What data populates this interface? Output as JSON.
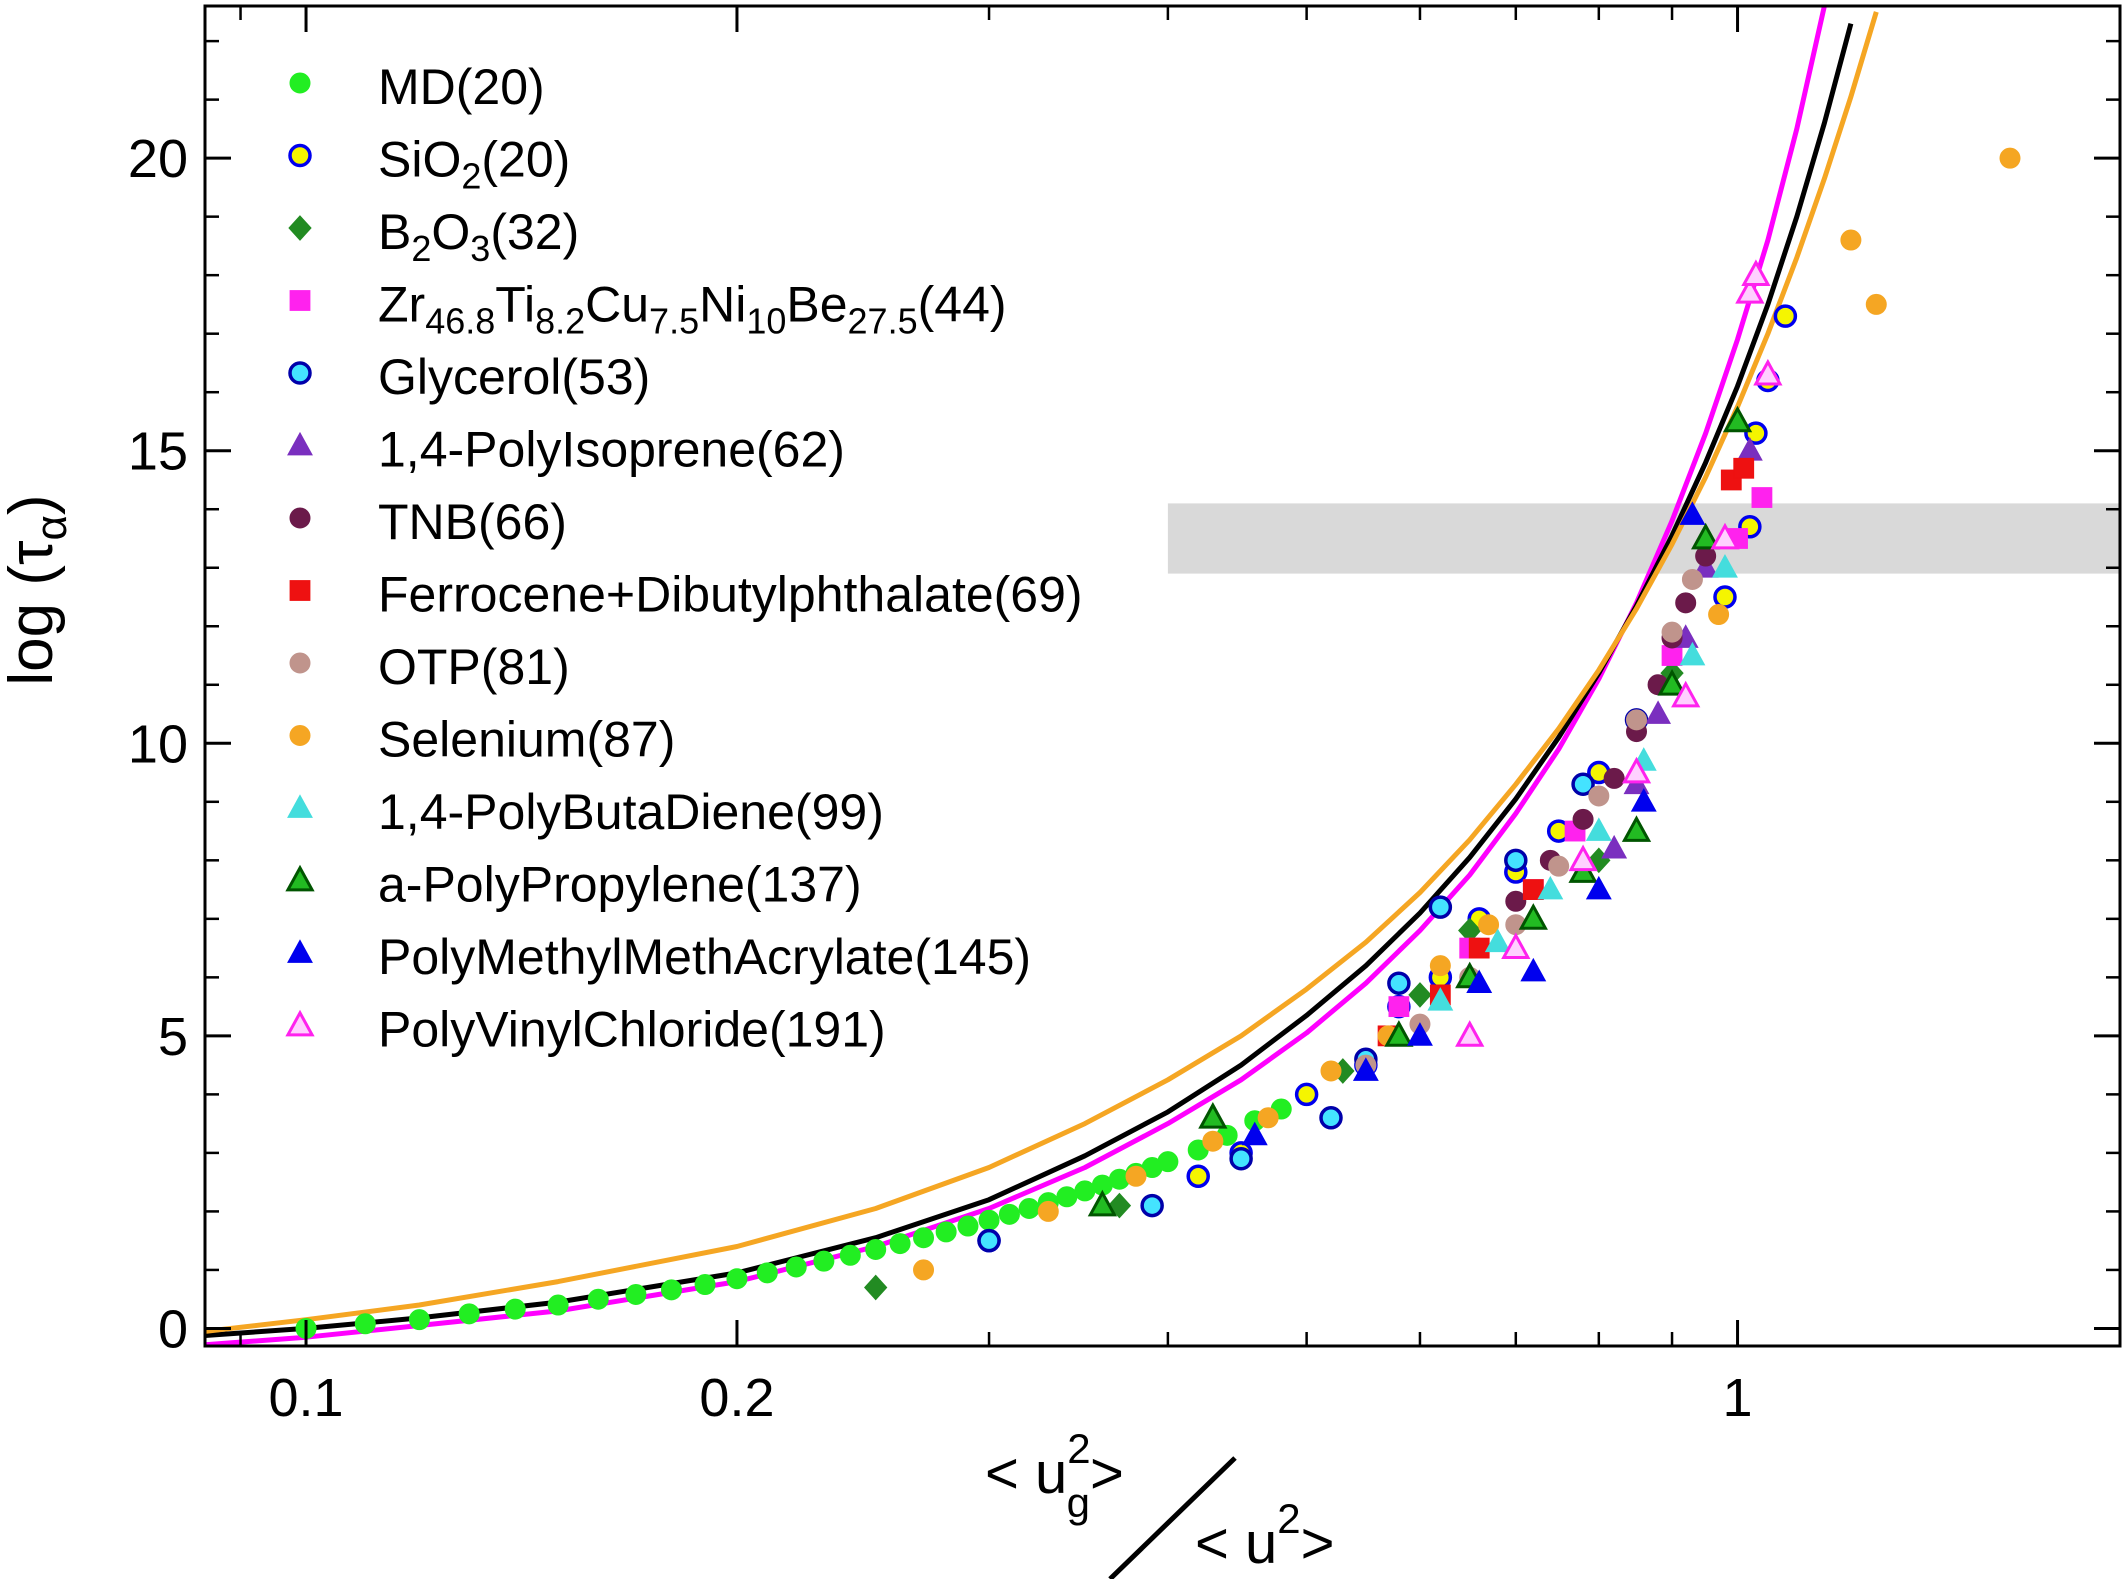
{
  "chart_data": {
    "type": "scatter",
    "title": "",
    "xscale": "log",
    "xlim": [
      0.085,
      1.85
    ],
    "ylim": [
      -0.3,
      22.6
    ],
    "xticks_major": [
      0.1,
      0.2,
      1
    ],
    "xtick_labels": [
      "0.1",
      "0.2",
      "1"
    ],
    "yticks_major": [
      0,
      5,
      10,
      15,
      20
    ],
    "ytick_labels": [
      "0",
      "5",
      "10",
      "15",
      "20"
    ],
    "ylabel": {
      "main": "log (τ",
      "sub": "α",
      "close": ")"
    },
    "xlabel": {
      "num_open": "< u",
      "num_sup": "2",
      "num_sub": "g",
      "num_close": ">",
      "den_open": "< u",
      "den_sup": "2",
      "den_close": ">"
    },
    "shaded_band": {
      "x_start": 0.4,
      "y_range": [
        12.9,
        14.1
      ],
      "color": "#d9d9d9"
    },
    "legend_position": "top-left",
    "curves": [
      {
        "color": "#ff00ff",
        "x": [
          0.085,
          0.1,
          0.12,
          0.15,
          0.2,
          0.25,
          0.3,
          0.35,
          0.4,
          0.45,
          0.5,
          0.55,
          0.6,
          0.65,
          0.7,
          0.75,
          0.8,
          0.85,
          0.9,
          0.95,
          1.0,
          1.05,
          1.1,
          1.15
        ],
        "y": [
          -0.28,
          -0.15,
          0.05,
          0.3,
          0.8,
          1.4,
          2.05,
          2.75,
          3.5,
          4.25,
          5.05,
          5.9,
          6.8,
          7.75,
          8.8,
          9.9,
          11.1,
          12.4,
          13.8,
          15.3,
          16.9,
          18.6,
          20.5,
          22.6
        ]
      },
      {
        "color": "#000000",
        "x": [
          0.085,
          0.1,
          0.12,
          0.15,
          0.2,
          0.25,
          0.3,
          0.35,
          0.4,
          0.45,
          0.5,
          0.55,
          0.6,
          0.65,
          0.7,
          0.75,
          0.8,
          0.85,
          0.9,
          0.95,
          1.0,
          1.05,
          1.1,
          1.15,
          1.2
        ],
        "y": [
          -0.12,
          0.0,
          0.18,
          0.45,
          0.95,
          1.55,
          2.2,
          2.95,
          3.7,
          4.5,
          5.35,
          6.2,
          7.1,
          8.05,
          9.05,
          10.1,
          11.2,
          12.35,
          13.55,
          14.8,
          16.1,
          17.5,
          19.0,
          20.6,
          22.3
        ]
      },
      {
        "color": "#f5a623",
        "x": [
          0.085,
          0.1,
          0.12,
          0.15,
          0.2,
          0.25,
          0.3,
          0.35,
          0.4,
          0.45,
          0.5,
          0.55,
          0.6,
          0.65,
          0.7,
          0.75,
          0.8,
          0.85,
          0.9,
          0.95,
          1.0,
          1.05,
          1.1,
          1.15,
          1.2,
          1.25
        ],
        "y": [
          -0.05,
          0.15,
          0.4,
          0.8,
          1.4,
          2.05,
          2.75,
          3.5,
          4.25,
          5.0,
          5.8,
          6.6,
          7.45,
          8.35,
          9.3,
          10.25,
          11.25,
          12.3,
          13.4,
          14.55,
          15.75,
          17.0,
          18.3,
          19.65,
          21.05,
          22.5
        ]
      }
    ],
    "series": [
      {
        "name": "MD",
        "sub": [],
        "ref": "(20)",
        "marker": "circle",
        "fill": "#22ee22",
        "stroke": "#22ee22",
        "x": [
          0.1,
          0.11,
          0.12,
          0.13,
          0.14,
          0.15,
          0.16,
          0.17,
          0.18,
          0.19,
          0.2,
          0.21,
          0.22,
          0.23,
          0.24,
          0.25,
          0.26,
          0.27,
          0.28,
          0.29,
          0.3,
          0.31,
          0.32,
          0.33,
          0.34,
          0.35,
          0.36,
          0.37,
          0.38,
          0.39,
          0.4,
          0.42,
          0.44,
          0.46,
          0.48,
          0.5
        ],
        "y": [
          0.0,
          0.08,
          0.15,
          0.25,
          0.33,
          0.4,
          0.5,
          0.58,
          0.66,
          0.75,
          0.85,
          0.95,
          1.05,
          1.15,
          1.25,
          1.35,
          1.45,
          1.55,
          1.65,
          1.75,
          1.85,
          1.95,
          2.05,
          2.15,
          2.25,
          2.35,
          2.45,
          2.55,
          2.65,
          2.75,
          2.85,
          3.05,
          3.3,
          3.55,
          3.75,
          4.0
        ]
      },
      {
        "name": "SiO",
        "sub": [
          "2"
        ],
        "ref": "(20)",
        "marker": "circle",
        "fill": "#f5f500",
        "stroke": "#0000ee",
        "x": [
          0.3,
          0.42,
          0.45,
          0.5,
          0.55,
          0.58,
          0.62,
          0.66,
          0.7,
          0.75,
          0.8,
          0.98,
          1.02,
          1.03,
          1.05,
          1.08
        ],
        "y": [
          1.5,
          2.6,
          3.0,
          4.0,
          4.5,
          5.5,
          6.0,
          7.0,
          7.8,
          8.5,
          9.5,
          12.5,
          13.7,
          15.3,
          16.2,
          17.3
        ]
      },
      {
        "name": "B",
        "sub": [
          "2",
          "3"
        ],
        "mid": [
          "O"
        ],
        "ref": "(32)",
        "marker": "diamond",
        "fill": "#228b22",
        "stroke": "#228b22",
        "x": [
          0.25,
          0.37,
          0.53,
          0.6,
          0.65,
          0.8,
          0.9
        ],
        "y": [
          0.7,
          2.1,
          4.4,
          5.7,
          6.8,
          8.0,
          11.2
        ]
      },
      {
        "name": "Zr",
        "sub": [
          "46.8",
          "8.2",
          "7.5",
          "10",
          "27.5"
        ],
        "mid": [
          "Ti",
          "Cu",
          "Ni",
          "Be"
        ],
        "ref": "(44)",
        "marker": "square",
        "fill": "#ff22ee",
        "stroke": "#ff22ee",
        "x": [
          0.58,
          0.65,
          0.72,
          0.77,
          0.9,
          1.0,
          1.04
        ],
        "y": [
          5.5,
          6.5,
          7.5,
          8.5,
          11.5,
          13.5,
          14.2
        ]
      },
      {
        "name": "Glycerol",
        "sub": [],
        "ref": "(53)",
        "marker": "circle",
        "fill": "#44e3ff",
        "stroke": "#0000aa",
        "x": [
          0.3,
          0.39,
          0.45,
          0.52,
          0.55,
          0.58,
          0.62,
          0.7,
          0.78,
          0.85
        ],
        "y": [
          1.5,
          2.1,
          2.9,
          3.6,
          4.6,
          5.9,
          7.2,
          8.0,
          9.3,
          10.4
        ]
      },
      {
        "name": "1,4-PolyIsoprene",
        "sub": [],
        "ref": "(62)",
        "marker": "triangle",
        "fill": "#7a2fbf",
        "stroke": "#7a2fbf",
        "x": [
          0.82,
          0.85,
          0.88,
          0.92,
          0.95,
          1.02
        ],
        "y": [
          8.2,
          9.3,
          10.5,
          11.8,
          13.0,
          15.0
        ]
      },
      {
        "name": "TNB",
        "sub": [],
        "ref": "(66)",
        "marker": "circle",
        "fill": "#6b1a4a",
        "stroke": "#6b1a4a",
        "x": [
          0.7,
          0.74,
          0.78,
          0.82,
          0.85,
          0.88,
          0.9,
          0.92,
          0.95
        ],
        "y": [
          7.3,
          8.0,
          8.7,
          9.4,
          10.2,
          11.0,
          11.8,
          12.4,
          13.2
        ]
      },
      {
        "name": "Ferrocene+Dibutylphthalate",
        "sub": [],
        "ref": "(69)",
        "marker": "square",
        "fill": "#ee1111",
        "stroke": "#ee1111",
        "x": [
          0.57,
          0.62,
          0.66,
          0.72,
          0.99,
          1.01
        ],
        "y": [
          5.0,
          5.7,
          6.5,
          7.5,
          14.5,
          14.7
        ]
      },
      {
        "name": "OTP",
        "sub": [],
        "ref": "(81)",
        "marker": "circle",
        "fill": "#c0948c",
        "stroke": "#c0948c",
        "x": [
          0.55,
          0.6,
          0.65,
          0.7,
          0.75,
          0.8,
          0.85,
          0.9,
          0.93
        ],
        "y": [
          4.5,
          5.2,
          6.0,
          6.9,
          7.9,
          9.1,
          10.4,
          11.9,
          12.8
        ]
      },
      {
        "name": "Selenium",
        "sub": [],
        "ref": "(87)",
        "marker": "circle",
        "fill": "#f5a623",
        "stroke": "#f5a623",
        "x": [
          0.27,
          0.33,
          0.38,
          0.43,
          0.47,
          0.52,
          0.57,
          0.62,
          0.67,
          0.97,
          1.2,
          1.25,
          1.55
        ],
        "y": [
          1.0,
          2.0,
          2.6,
          3.2,
          3.6,
          4.4,
          5.0,
          6.2,
          6.9,
          12.2,
          18.6,
          17.5,
          20.0
        ]
      },
      {
        "name": "1,4-PolyButaDiene",
        "sub": [],
        "ref": "(99)",
        "marker": "triangle",
        "fill": "#44dddd",
        "stroke": "#44dddd",
        "x": [
          0.62,
          0.68,
          0.74,
          0.8,
          0.86,
          0.93,
          0.98
        ],
        "y": [
          5.6,
          6.6,
          7.5,
          8.5,
          9.7,
          11.5,
          13.0
        ]
      },
      {
        "name": "a-PolyPropylene",
        "sub": [],
        "ref": "(137)",
        "marker": "triangle",
        "fill": "#22bb22",
        "stroke": "#005500",
        "x": [
          0.36,
          0.43,
          0.58,
          0.65,
          0.72,
          0.78,
          0.85,
          0.9,
          0.95,
          1.0
        ],
        "y": [
          2.1,
          3.6,
          5.0,
          6.0,
          7.0,
          7.8,
          8.5,
          11.0,
          13.5,
          15.5
        ]
      },
      {
        "name": "PolyMethylMethAcrylate",
        "sub": [],
        "ref": "(145)",
        "marker": "triangle",
        "fill": "#0000ee",
        "stroke": "#0000ee",
        "x": [
          0.46,
          0.55,
          0.6,
          0.66,
          0.72,
          0.8,
          0.86,
          0.93
        ],
        "y": [
          3.3,
          4.4,
          5.0,
          5.9,
          6.1,
          7.5,
          9.0,
          13.9
        ]
      },
      {
        "name": "PolyVinylChloride",
        "sub": [],
        "ref": "(191)",
        "marker": "triangle",
        "fill": "#ffd0ff",
        "stroke": "#ff22ee",
        "x": [
          0.65,
          0.7,
          0.78,
          0.85,
          0.92,
          0.98,
          1.02,
          1.03,
          1.05
        ],
        "y": [
          5.0,
          6.5,
          8.0,
          9.5,
          10.8,
          13.5,
          17.7,
          18.0,
          16.3
        ]
      }
    ]
  }
}
